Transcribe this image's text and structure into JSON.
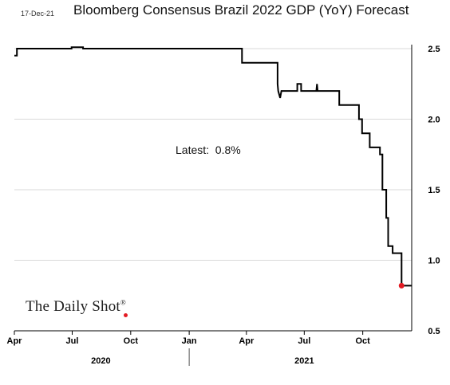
{
  "header": {
    "date": "17-Dec-21",
    "title": "Bloomberg Consensus Brazil 2022 GDP (YoY) Forecast"
  },
  "annotation": {
    "text": "Latest:  0.8%"
  },
  "watermark": {
    "text": "The Daily Shot",
    "mark": "®"
  },
  "colors": {
    "line": "#000000",
    "latest_marker": "#e31b23",
    "grid": "#d9d9d9",
    "axis": "#000000"
  },
  "chart_data": {
    "type": "line",
    "title": "Bloomberg Consensus Brazil 2022 GDP (YoY) Forecast",
    "xlabel": "",
    "ylabel": "",
    "x_axis": {
      "range": [
        "2020-04-01",
        "2021-12-17"
      ],
      "ticks": [
        {
          "date": "2020-04-01",
          "label": "Apr"
        },
        {
          "date": "2020-07-01",
          "label": "Jul"
        },
        {
          "date": "2020-10-01",
          "label": "Oct"
        },
        {
          "date": "2021-01-01",
          "label": "Jan"
        },
        {
          "date": "2021-04-01",
          "label": "Apr"
        },
        {
          "date": "2021-07-01",
          "label": "Jul"
        },
        {
          "date": "2021-10-01",
          "label": "Oct"
        }
      ],
      "years": [
        {
          "label": "2020",
          "center": "2020-08-15"
        },
        {
          "label": "2021",
          "center": "2021-07-01"
        }
      ],
      "year_divider": "2021-01-01"
    },
    "y_axis": {
      "position": "right",
      "ylim": [
        0.5,
        2.5
      ],
      "ticks": [
        0.5,
        1.0,
        1.5,
        2.0,
        2.5
      ],
      "tick_labels": [
        "0.5",
        "1.0",
        "1.5",
        "2.0",
        "2.5"
      ]
    },
    "grid": true,
    "legend": "none",
    "series": [
      {
        "style": "step",
        "points": [
          [
            "2020-04-01",
            2.45
          ],
          [
            "2020-04-05",
            2.45
          ],
          [
            "2020-04-05",
            2.5
          ],
          [
            "2020-06-30",
            2.5
          ],
          [
            "2020-06-30",
            2.51
          ],
          [
            "2020-07-18",
            2.51
          ],
          [
            "2020-07-18",
            2.5
          ],
          [
            "2021-03-25",
            2.5
          ],
          [
            "2021-03-25",
            2.4
          ],
          [
            "2021-05-20",
            2.4
          ],
          [
            "2021-05-20",
            2.25
          ],
          [
            "2021-05-21",
            2.2
          ],
          [
            "2021-05-24",
            2.15
          ],
          [
            "2021-05-26",
            2.2
          ],
          [
            "2021-06-20",
            2.2
          ],
          [
            "2021-06-20",
            2.25
          ],
          [
            "2021-06-26",
            2.25
          ],
          [
            "2021-06-26",
            2.2
          ],
          [
            "2021-07-20",
            2.2
          ],
          [
            "2021-07-21",
            2.25
          ],
          [
            "2021-07-22",
            2.2
          ],
          [
            "2021-08-25",
            2.2
          ],
          [
            "2021-08-25",
            2.1
          ],
          [
            "2021-09-25",
            2.1
          ],
          [
            "2021-09-25",
            2.0
          ],
          [
            "2021-09-30",
            2.0
          ],
          [
            "2021-09-30",
            1.9
          ],
          [
            "2021-10-12",
            1.9
          ],
          [
            "2021-10-12",
            1.8
          ],
          [
            "2021-10-28",
            1.8
          ],
          [
            "2021-10-28",
            1.75
          ],
          [
            "2021-11-01",
            1.75
          ],
          [
            "2021-11-01",
            1.5
          ],
          [
            "2021-11-07",
            1.5
          ],
          [
            "2021-11-07",
            1.3
          ],
          [
            "2021-11-10",
            1.3
          ],
          [
            "2021-11-10",
            1.1
          ],
          [
            "2021-11-17",
            1.1
          ],
          [
            "2021-11-17",
            1.05
          ],
          [
            "2021-12-01",
            1.05
          ],
          [
            "2021-12-01",
            0.82
          ],
          [
            "2021-12-17",
            0.82
          ]
        ]
      }
    ],
    "latest": {
      "date": "2021-12-01",
      "value": 0.82
    },
    "annotations": [
      "Latest:  0.8%"
    ]
  }
}
